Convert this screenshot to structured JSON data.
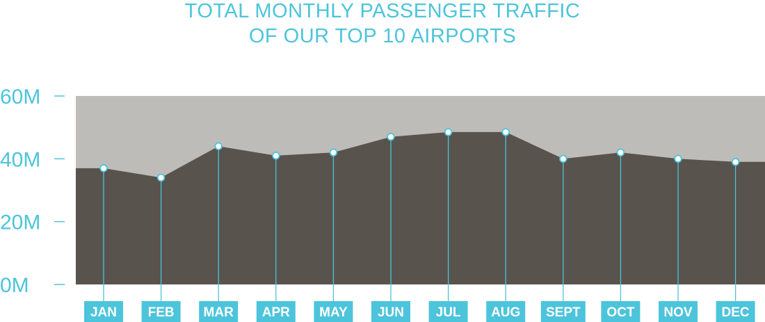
{
  "chart_data": {
    "type": "area",
    "title_line1": "TOTAL MONTHLY PASSENGER TRAFFIC",
    "title_line2": "OF OUR TOP 10 AIRPORTS",
    "categories": [
      "JAN",
      "FEB",
      "MAR",
      "APR",
      "MAY",
      "JUN",
      "JUL",
      "AUG",
      "SEPT",
      "OCT",
      "NOV",
      "DEC"
    ],
    "values": [
      37,
      34,
      44,
      41,
      42,
      47,
      48.5,
      48.5,
      40,
      42,
      40,
      39
    ],
    "unit": "M",
    "ylim": [
      0,
      60
    ],
    "yticks": [
      0,
      20,
      40,
      60
    ],
    "ytick_labels": [
      "0M",
      "20M",
      "40M",
      "60M"
    ],
    "grid": false,
    "colors": {
      "accent": "#4cc4db",
      "area": "#58534d",
      "background_band": "#bebcb8",
      "label_text": "#ffffff"
    }
  }
}
